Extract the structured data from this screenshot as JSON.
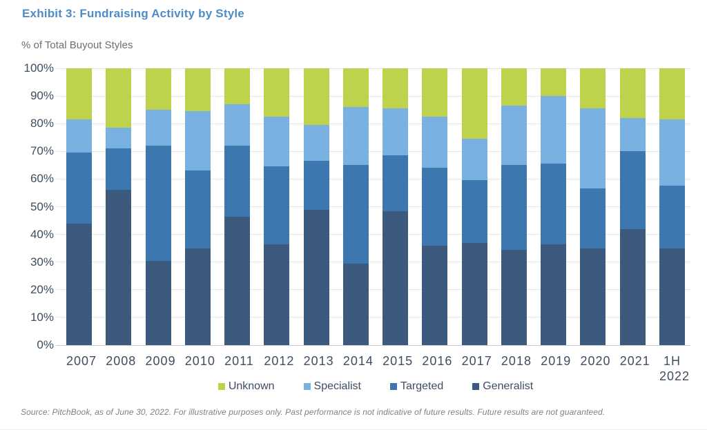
{
  "header": {
    "title": "Exhibit 3: Fundraising Activity by Style",
    "subtitle": "% of Total Buyout Styles"
  },
  "colors": {
    "title_accent": "#4d8cc6",
    "axis_text": "#3e4d5f",
    "gridline": "#e4e5e7",
    "baseline": "#c9cbce"
  },
  "chart_data": {
    "type": "bar",
    "stacked": true,
    "unit": "%",
    "title": "Exhibit 3: Fundraising Activity by Style",
    "ylabel": "% of Total Buyout Styles",
    "xlabel": "",
    "ylim": [
      0,
      100
    ],
    "yticks": [
      "100%",
      "90%",
      "80%",
      "70%",
      "60%",
      "50%",
      "40%",
      "30%",
      "20%",
      "10%",
      "0%"
    ],
    "grid": true,
    "legend_position": "bottom",
    "legend": [
      "Unknown",
      "Specialist",
      "Targeted",
      "Generalist"
    ],
    "categories": [
      "2007",
      "2008",
      "2009",
      "2010",
      "2011",
      "2012",
      "2013",
      "2014",
      "2015",
      "2016",
      "2017",
      "2018",
      "2019",
      "2020",
      "2021",
      "1H 2022"
    ],
    "stack_order": "bottom-to-top",
    "series": [
      {
        "name": "Generalist",
        "color": "#3b5a7e",
        "values": [
          44,
          56,
          30.5,
          35,
          46.5,
          36.5,
          49,
          29.5,
          48.5,
          36,
          37,
          34.5,
          36.5,
          35,
          42,
          35
        ]
      },
      {
        "name": "Targeted",
        "color": "#3d77af",
        "values": [
          25.5,
          15,
          41.5,
          28,
          25.5,
          28,
          17.5,
          35.5,
          20,
          28,
          22.5,
          30.5,
          29,
          21.5,
          28,
          22.5
        ]
      },
      {
        "name": "Specialist",
        "color": "#79b1e0",
        "values": [
          12,
          7.5,
          13,
          21.5,
          15,
          18,
          13,
          21,
          17,
          18.5,
          15,
          21.5,
          24.5,
          29,
          12,
          24
        ]
      },
      {
        "name": "Unknown",
        "color": "#bfd24b",
        "values": [
          18.5,
          21.5,
          15,
          15.5,
          13,
          17.5,
          20.5,
          14,
          14.5,
          17.5,
          25.5,
          13.5,
          10,
          14.5,
          18,
          18.5
        ]
      }
    ]
  },
  "footer": {
    "source": "Source: PitchBook, as of June 30, 2022. For illustrative purposes only. Past performance is not indicative of future results. Future results are not guaranteed."
  }
}
